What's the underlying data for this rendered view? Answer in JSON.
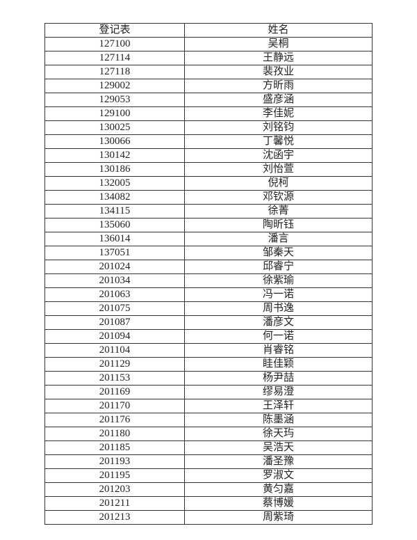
{
  "table": {
    "headers": [
      "登记表",
      "姓名"
    ],
    "rows": [
      [
        "127100",
        "吴桐"
      ],
      [
        "127114",
        "王静远"
      ],
      [
        "127118",
        "裴孜业"
      ],
      [
        "129002",
        "方昕雨"
      ],
      [
        "129053",
        "盛彦涵"
      ],
      [
        "129100",
        "李佳妮"
      ],
      [
        "130025",
        "刘铭钧"
      ],
      [
        "130066",
        "丁馨悦"
      ],
      [
        "130142",
        "沈函宇"
      ],
      [
        "130186",
        "刘怡萱"
      ],
      [
        "132005",
        "倪柯"
      ],
      [
        "134082",
        "邓钦源"
      ],
      [
        "134115",
        "徐菁"
      ],
      [
        "135060",
        "陶昕钰"
      ],
      [
        "136014",
        "潘言"
      ],
      [
        "137051",
        "邹秦天"
      ],
      [
        "201024",
        "邱睿宁"
      ],
      [
        "201034",
        "徐紫瑜"
      ],
      [
        "201063",
        "冯一诺"
      ],
      [
        "201075",
        "周书逸"
      ],
      [
        "201087",
        "潘彦文"
      ],
      [
        "201094",
        "何一诺"
      ],
      [
        "201104",
        "肖睿铭"
      ],
      [
        "201129",
        "眭佳颖"
      ],
      [
        "201153",
        "杨尹喆"
      ],
      [
        "201169",
        "缪易澄"
      ],
      [
        "201170",
        "王泽轩"
      ],
      [
        "201176",
        "陈墨涵"
      ],
      [
        "201180",
        "徐天玙"
      ],
      [
        "201185",
        "吴浩天"
      ],
      [
        "201193",
        "潘圣豫"
      ],
      [
        "201195",
        "罗淑文"
      ],
      [
        "201203",
        "黄匀嘉"
      ],
      [
        "201211",
        "蔡博媛"
      ],
      [
        "201213",
        "周紫琦"
      ]
    ]
  }
}
